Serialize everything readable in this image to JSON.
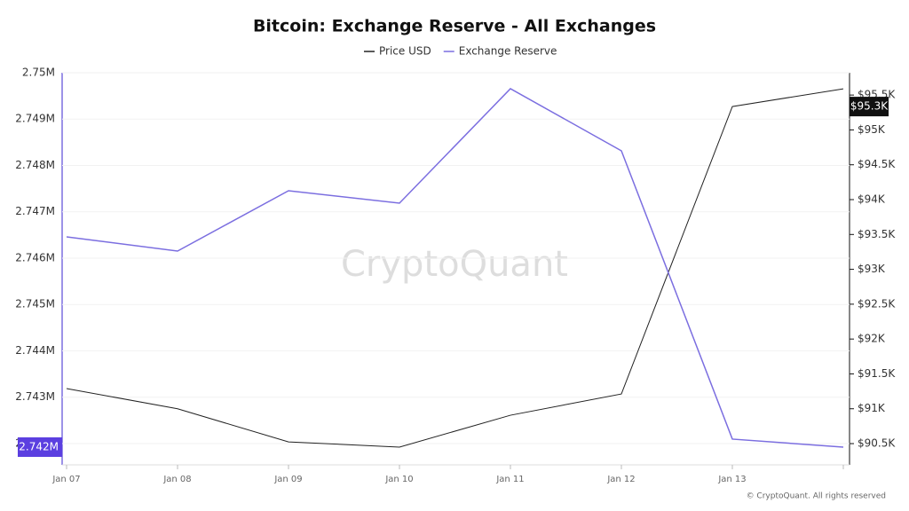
{
  "chart_data": {
    "type": "line",
    "title": "Bitcoin: Exchange Reserve - All Exchanges",
    "watermark": "CryptoQuant",
    "footer": "© CryptoQuant. All rights reserved",
    "categories": [
      "Jan 07",
      "Jan 08",
      "Jan 09",
      "Jan 10",
      "Jan 11",
      "Jan 12",
      "Jan 13",
      null
    ],
    "series": [
      {
        "name": "Price USD",
        "color": "#222222",
        "axis": "y2",
        "values": [
          91290,
          91000,
          90525,
          90450,
          90907,
          91212,
          95335,
          95590
        ]
      },
      {
        "name": "Exchange Reserve",
        "color": "#7b6ee0",
        "values": [
          2746460,
          2746153,
          2747455,
          2747187,
          2749656,
          2748316,
          2742096,
          2741923
        ]
      }
    ],
    "ylim": [
      2741540,
      2750000
    ],
    "yticks": [
      {
        "value": 2742000,
        "label": "2.742M"
      },
      {
        "value": 2743000,
        "label": "2.743M"
      },
      {
        "value": 2744000,
        "label": "2.744M"
      },
      {
        "value": 2745000,
        "label": "2.745M"
      },
      {
        "value": 2746000,
        "label": "2.746M"
      },
      {
        "value": 2747000,
        "label": "2.747M"
      },
      {
        "value": 2748000,
        "label": "2.748M"
      },
      {
        "value": 2749000,
        "label": "2.749M"
      },
      {
        "value": 2750000,
        "label": "2.75M"
      }
    ],
    "y2lim": [
      90195,
      95820
    ],
    "y2ticks": [
      {
        "value": 90500,
        "label": "$90.5K"
      },
      {
        "value": 91000,
        "label": "$91K"
      },
      {
        "value": 91500,
        "label": "$91.5K"
      },
      {
        "value": 92000,
        "label": "$92K"
      },
      {
        "value": 92500,
        "label": "$92.5K"
      },
      {
        "value": 93000,
        "label": "$93K"
      },
      {
        "value": 93500,
        "label": "$93.5K"
      },
      {
        "value": 94000,
        "label": "$94K"
      },
      {
        "value": 94500,
        "label": "$94.5K"
      },
      {
        "value": 95000,
        "label": "$95K"
      },
      {
        "value": 95500,
        "label": "$95.5K"
      }
    ],
    "left_marker": {
      "value": 2741923,
      "label": "2.742M"
    },
    "right_marker": {
      "value": 95335,
      "label": "$95.3K"
    },
    "grid": true
  }
}
